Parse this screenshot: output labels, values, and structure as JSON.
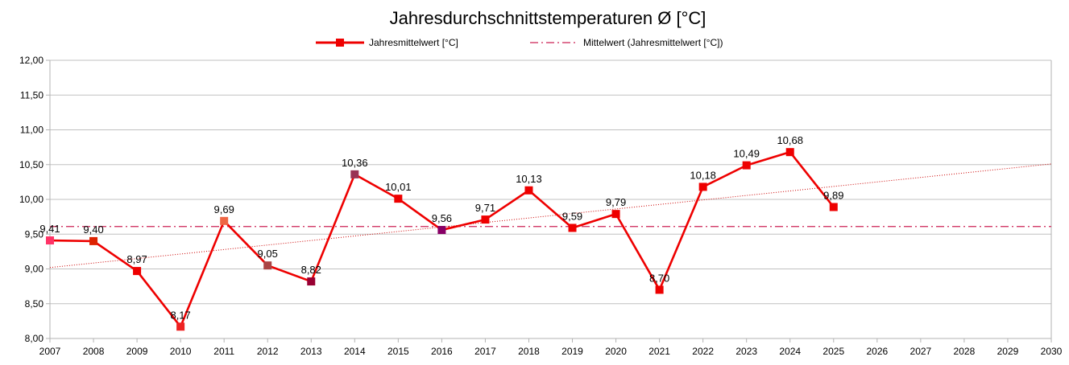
{
  "chart_data": {
    "type": "line",
    "title": "Jahresdurchschnittstemperaturen Ø [°C]",
    "xlabel": "",
    "ylabel": "",
    "ylim": [
      8.0,
      12.0
    ],
    "xlim": [
      2007,
      2030
    ],
    "x_ticks": [
      "2007",
      "2008",
      "2009",
      "2010",
      "2011",
      "2012",
      "2013",
      "2014",
      "2015",
      "2016",
      "2017",
      "2018",
      "2019",
      "2020",
      "2021",
      "2022",
      "2023",
      "2024",
      "2025",
      "2026",
      "2027",
      "2028",
      "2029",
      "2030"
    ],
    "y_ticks": [
      "8,00",
      "8,50",
      "9,00",
      "9,50",
      "10,00",
      "10,50",
      "11,00",
      "11,50",
      "12,00"
    ],
    "y_tick_values": [
      8.0,
      8.5,
      9.0,
      9.5,
      10.0,
      10.5,
      11.0,
      11.5,
      12.0
    ],
    "grid": "horizontal",
    "legend_position": "top-center",
    "series": [
      {
        "name": "Jahresmittelwert [°C]",
        "color": "#ee0000",
        "x": [
          2007,
          2008,
          2009,
          2010,
          2011,
          2012,
          2013,
          2014,
          2015,
          2016,
          2017,
          2018,
          2019,
          2020,
          2021,
          2022,
          2023,
          2024,
          2025
        ],
        "values": [
          9.41,
          9.4,
          8.97,
          8.17,
          9.69,
          9.05,
          8.82,
          10.36,
          10.01,
          9.56,
          9.71,
          10.13,
          9.59,
          9.79,
          8.7,
          10.18,
          10.49,
          10.68,
          9.89
        ],
        "labels": [
          "9,41",
          "9,40",
          "8,97",
          "8,17",
          "9,69",
          "9,05",
          "8,82",
          "10,36",
          "10,01",
          "9,56",
          "9,71",
          "10,13",
          "9,59",
          "9,79",
          "8,70",
          "10,18",
          "10,49",
          "10,68",
          "9,89"
        ],
        "marker_colors": [
          "#ff3366",
          "#dd2200",
          "#ee0000",
          "#ee2222",
          "#ee6644",
          "#aa4444",
          "#990033",
          "#993355",
          "#ee0000",
          "#880066",
          "#ee0000",
          "#ee0000",
          "#ee0000",
          "#ee0000",
          "#ee0000",
          "#ee0000",
          "#ee0000",
          "#ee0000",
          "#ee0000"
        ]
      }
    ],
    "mean_line": {
      "name": "Mittelwert (Jahresmittelwert [°C])",
      "value": 9.61,
      "color": "#cc2255"
    },
    "trend_line": {
      "color": "#cc0000",
      "x": [
        2007,
        2030
      ],
      "values": [
        9.02,
        10.51
      ]
    }
  }
}
